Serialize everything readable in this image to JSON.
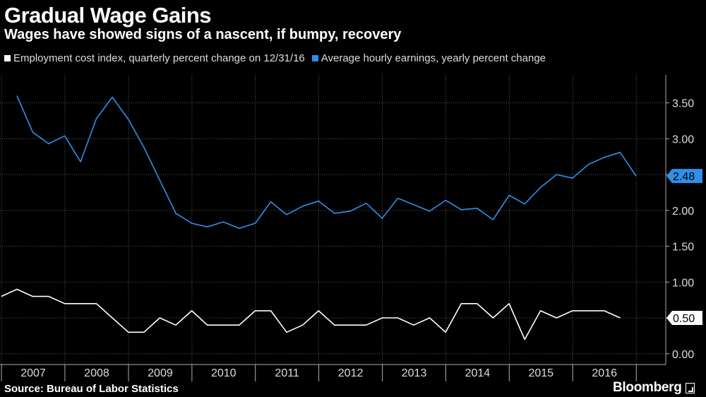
{
  "chart_data": {
    "type": "line",
    "title": "Gradual Wage Gains",
    "subtitle": "Wages have showed signs of a nascent, if bumpy, recovery",
    "x": [
      "2006-12-31",
      "2007-03-31",
      "2007-06-30",
      "2007-09-30",
      "2007-12-31",
      "2008-03-31",
      "2008-06-30",
      "2008-09-30",
      "2008-12-31",
      "2009-03-31",
      "2009-06-30",
      "2009-09-30",
      "2009-12-31",
      "2010-03-31",
      "2010-06-30",
      "2010-09-30",
      "2010-12-31",
      "2011-03-31",
      "2011-06-30",
      "2011-09-30",
      "2011-12-31",
      "2012-03-31",
      "2012-06-30",
      "2012-09-30",
      "2012-12-31",
      "2013-03-31",
      "2013-06-30",
      "2013-09-30",
      "2013-12-31",
      "2014-03-31",
      "2014-06-30",
      "2014-09-30",
      "2014-12-31",
      "2015-03-31",
      "2015-06-30",
      "2015-09-30",
      "2015-12-31",
      "2016-03-31",
      "2016-06-30",
      "2016-09-30",
      "2016-12-31"
    ],
    "series": [
      {
        "name": "Employment cost index, quarterly percent change on 12/31/16",
        "color": "#ffffff",
        "values": [
          0.8,
          0.9,
          0.8,
          0.8,
          0.7,
          0.7,
          0.7,
          0.5,
          0.3,
          0.3,
          0.5,
          0.4,
          0.6,
          0.4,
          0.4,
          0.4,
          0.6,
          0.6,
          0.3,
          0.4,
          0.6,
          0.4,
          0.4,
          0.4,
          0.5,
          0.5,
          0.4,
          0.5,
          0.3,
          0.7,
          0.7,
          0.5,
          0.7,
          0.2,
          0.6,
          0.5,
          0.6,
          0.6,
          0.6,
          0.5,
          null
        ]
      },
      {
        "name": "Average hourly earnings, yearly percent change",
        "color": "#2f8fe9",
        "values": [
          null,
          3.6,
          3.09,
          2.93,
          3.04,
          2.68,
          3.28,
          3.58,
          3.27,
          2.88,
          2.42,
          1.96,
          1.82,
          1.77,
          1.84,
          1.75,
          1.82,
          2.12,
          1.94,
          2.06,
          2.13,
          1.96,
          1.99,
          2.1,
          1.89,
          2.17,
          2.08,
          1.99,
          2.14,
          2.01,
          2.03,
          1.87,
          2.21,
          2.09,
          2.32,
          2.5,
          2.45,
          2.64,
          2.74,
          2.81,
          2.48
        ]
      }
    ],
    "last_value_labels": [
      "2.48",
      "0.50"
    ],
    "xlabel": "",
    "ylabel": "",
    "ylim": [
      -0.15,
      3.95
    ],
    "y_ticks": [
      "0.00",
      "0.50",
      "1.00",
      "1.50",
      "2.00",
      "2.50",
      "3.00",
      "3.50"
    ],
    "x_tick_labels": [
      "2007",
      "2008",
      "2009",
      "2010",
      "2011",
      "2012",
      "2013",
      "2014",
      "2015",
      "2016"
    ],
    "grid": true,
    "legend_position": "top-left"
  },
  "footer": {
    "source": "Source: Bureau of Labor Statistics",
    "brand": "Bloomberg"
  }
}
